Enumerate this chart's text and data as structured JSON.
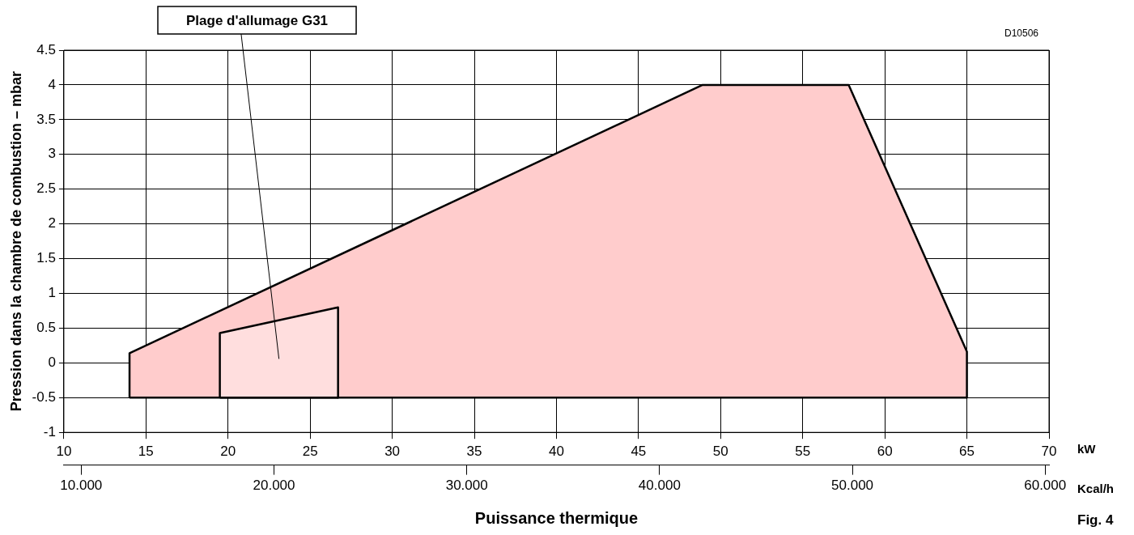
{
  "chart_data": {
    "type": "area",
    "xlabel": "Puissance thermique",
    "ylabel": "Pression dans la chambre de combustion – mbar",
    "xlim": [
      10,
      70
    ],
    "xticks": [
      10,
      15,
      20,
      25,
      30,
      35,
      40,
      45,
      50,
      55,
      60,
      65,
      70
    ],
    "ylim": [
      -1,
      4.5
    ],
    "yticks": [
      -1,
      -0.5,
      0,
      0.5,
      1,
      1.5,
      2,
      2.5,
      3,
      3.5,
      4,
      4.5
    ],
    "x2lim": [
      9.1,
      60.2
    ],
    "x2ticks": [
      {
        "value": 10,
        "label": "10.000"
      },
      {
        "value": 20,
        "label": "20.000"
      },
      {
        "value": 30,
        "label": "30.000"
      },
      {
        "value": 40,
        "label": "40.000"
      },
      {
        "value": 50,
        "label": "50.000"
      },
      {
        "value": 60,
        "label": "60.000"
      }
    ],
    "grid": true,
    "legend": false,
    "marker": "none",
    "series": [
      {
        "color": "#ffcccc",
        "x": [
          14,
          14,
          48.9,
          57.8,
          65,
          65
        ],
        "values": [
          -0.5,
          0.14,
          4,
          4,
          0.16,
          -0.5
        ]
      },
      {
        "color": "#ffdede",
        "x": [
          19.5,
          19.5,
          26.7,
          26.7
        ],
        "values": [
          -0.5,
          0.43,
          0.8,
          -0.5
        ]
      }
    ],
    "annotations": [
      "Plage d'allumage G31",
      "D10506",
      "kW",
      "Kcal/h",
      "Fig. 4"
    ]
  }
}
